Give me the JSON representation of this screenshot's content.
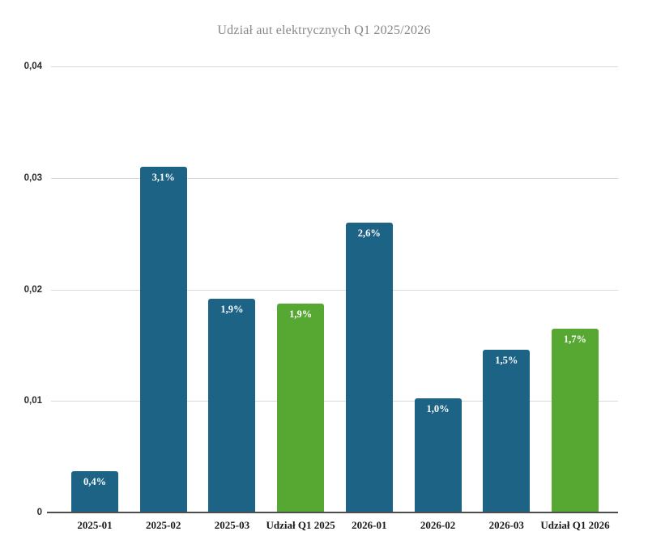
{
  "chart_data": {
    "type": "bar",
    "title": "Udział aut elektrycznych Q1 2025/2026",
    "categories": [
      "2025-01",
      "2025-02",
      "2025-03",
      "Udział Q1 2025",
      "2026-01",
      "2026-02",
      "2026-03",
      "Udział Q1 2026"
    ],
    "values": [
      0.0037,
      0.031,
      0.0192,
      0.0187,
      0.026,
      0.0102,
      0.0146,
      0.0165
    ],
    "value_labels": [
      "0,4%",
      "3,1%",
      "1,9%",
      "1,9%",
      "2,6%",
      "1,0%",
      "1,5%",
      "1,7%"
    ],
    "bar_colors": [
      "#1c6386",
      "#1c6386",
      "#1c6386",
      "#57a733",
      "#1c6386",
      "#1c6386",
      "#1c6386",
      "#57a733"
    ],
    "colors": {
      "monthly_bar": "#1c6386",
      "quarterly_avg_bar": "#57a733",
      "gridline": "#d9d9d9",
      "axis_line": "#4d4d4d",
      "title_text": "#878787",
      "xtick_text": "#1a1a1a",
      "ytick_text": "#2b2b2b",
      "bar_value_text": "#ffffff",
      "background": "#ffffff"
    },
    "xlabel": "",
    "ylabel": "",
    "ylim": [
      0,
      0.04
    ],
    "yticks": [
      0,
      0.01,
      0.02,
      0.03,
      0.04
    ],
    "ytick_labels": [
      "0",
      "0,01",
      "0,02",
      "0,03",
      "0,04"
    ],
    "grid": "horizontal",
    "legend": "none"
  }
}
